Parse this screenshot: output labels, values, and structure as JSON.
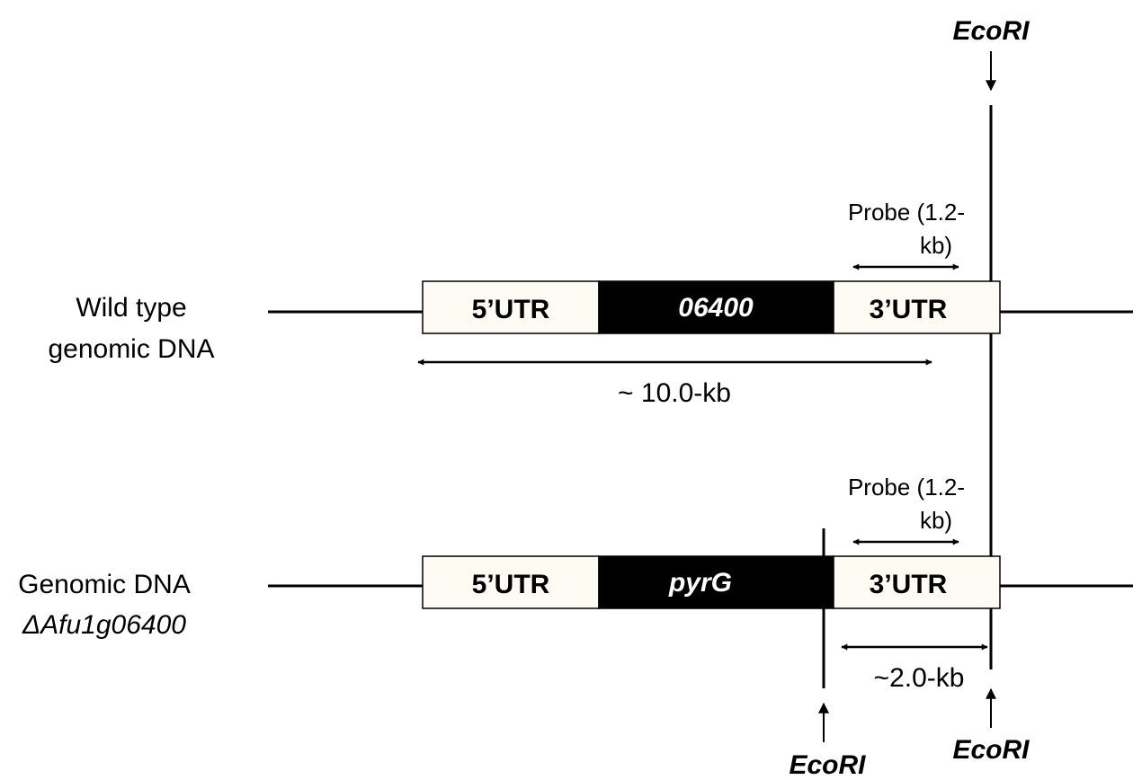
{
  "wild_type": {
    "label_line1": "Wild type",
    "label_line2": "genomic DNA",
    "utr5": "5’UTR",
    "gene": "06400",
    "utr3": "3’UTR",
    "probe_line1": "Probe (1.2-",
    "probe_line2": "kb)",
    "fragment": "~ 10.0-kb"
  },
  "mutant": {
    "label_line1": "Genomic DNA",
    "label_line2": "ΔAfu1g06400",
    "utr5": "5’UTR",
    "gene": "pyrG",
    "utr3": "3’UTR",
    "probe_line1": "Probe (1.2-",
    "probe_line2": "kb)",
    "fragment": "~2.0-kb"
  },
  "enzyme_sites": {
    "top": "EcoRI",
    "bottom_left": "EcoRI",
    "bottom_right": "EcoRI"
  },
  "colors": {
    "utr_fill": "#fdfbf3",
    "gene_fill": "#000000",
    "line": "#000000"
  }
}
